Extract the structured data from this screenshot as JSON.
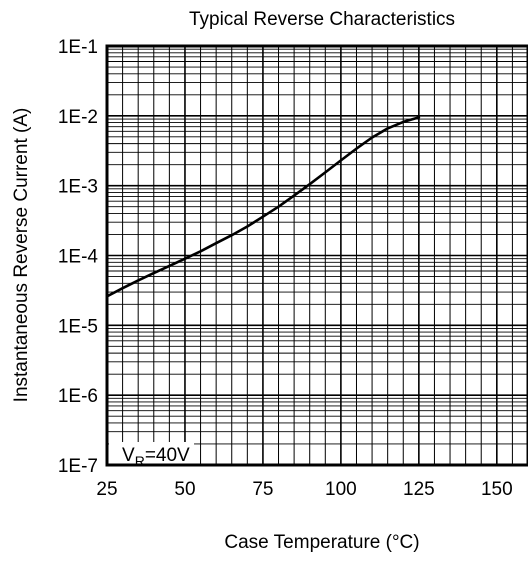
{
  "chart_data": {
    "type": "line",
    "title": "Typical Reverse Characteristics",
    "xlabel": "Case Temperature (°C)",
    "ylabel": "Instantaneous Reverse Current (A)",
    "x_ticks": [
      "25",
      "50",
      "75",
      "100",
      "125",
      "150"
    ],
    "y_ticks": [
      "1E-1",
      "1E-2",
      "1E-3",
      "1E-4",
      "1E-5",
      "1E-6",
      "1E-7"
    ],
    "xlim": [
      25,
      160
    ],
    "ylim": [
      1e-07,
      0.1
    ],
    "y_scale": "log",
    "grid": true,
    "annotation": {
      "base": "V",
      "subscript": "R",
      "rest": "=40V"
    },
    "series": [
      {
        "x": [
          25,
          30,
          35,
          40,
          45,
          50,
          55,
          60,
          65,
          70,
          75,
          80,
          85,
          90,
          95,
          100,
          105,
          110,
          115,
          120,
          125
        ],
        "y": [
          2.6e-05,
          3.4e-05,
          4.4e-05,
          5.6e-05,
          7.1e-05,
          9e-05,
          0.000115,
          0.00015,
          0.000195,
          0.00026,
          0.00036,
          0.0005,
          0.00072,
          0.00105,
          0.00155,
          0.0023,
          0.0034,
          0.0049,
          0.0066,
          0.0082,
          0.0095
        ]
      }
    ]
  }
}
